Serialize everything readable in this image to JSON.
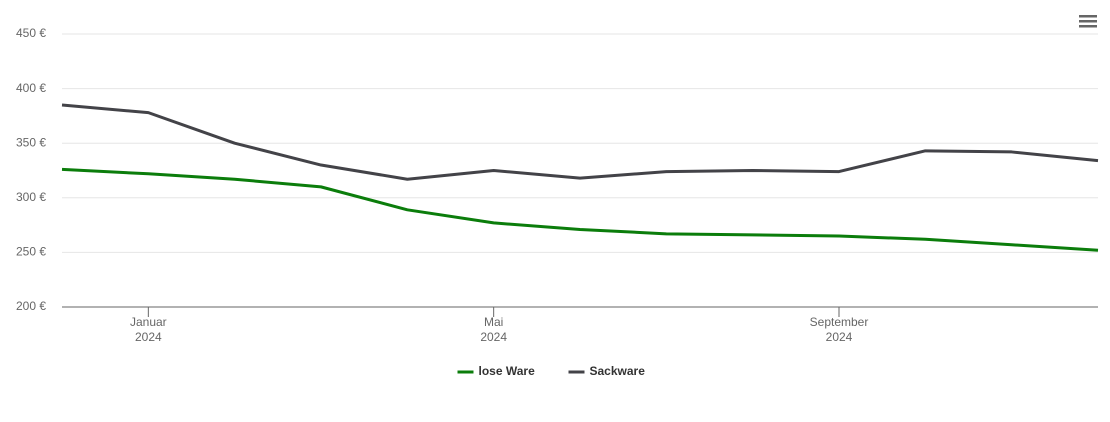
{
  "chart_data": {
    "type": "line",
    "x": [
      "2023-12",
      "2024-01",
      "2024-02",
      "2024-03",
      "2024-04",
      "2024-05",
      "2024-06",
      "2024-07",
      "2024-08",
      "2024-09",
      "2024-10",
      "2024-11",
      "2024-12"
    ],
    "xlim": [
      "2023-12",
      "2024-12"
    ],
    "xticks": [
      {
        "value": "2024-01",
        "label": "Januar",
        "year": "2024"
      },
      {
        "value": "2024-05",
        "label": "Mai",
        "year": "2024"
      },
      {
        "value": "2024-09",
        "label": "September",
        "year": "2024"
      }
    ],
    "ylim": [
      200,
      450
    ],
    "yticks": [
      {
        "value": 200,
        "label": "200 €"
      },
      {
        "value": 250,
        "label": "250 €"
      },
      {
        "value": 300,
        "label": "300 €"
      },
      {
        "value": 350,
        "label": "350 €"
      },
      {
        "value": 400,
        "label": "400 €"
      },
      {
        "value": 450,
        "label": "450 €"
      }
    ],
    "grid": true,
    "legend": "bottom",
    "series": [
      {
        "name": "lose Ware",
        "color": "#0b7d0b",
        "values": [
          326,
          322,
          317,
          310,
          289,
          277,
          271,
          267,
          266,
          265,
          262,
          257,
          252
        ]
      },
      {
        "name": "Sackware",
        "color": "#434348",
        "values": [
          385,
          378,
          350,
          330,
          317,
          325,
          318,
          324,
          325,
          324,
          343,
          342,
          334
        ]
      }
    ]
  }
}
